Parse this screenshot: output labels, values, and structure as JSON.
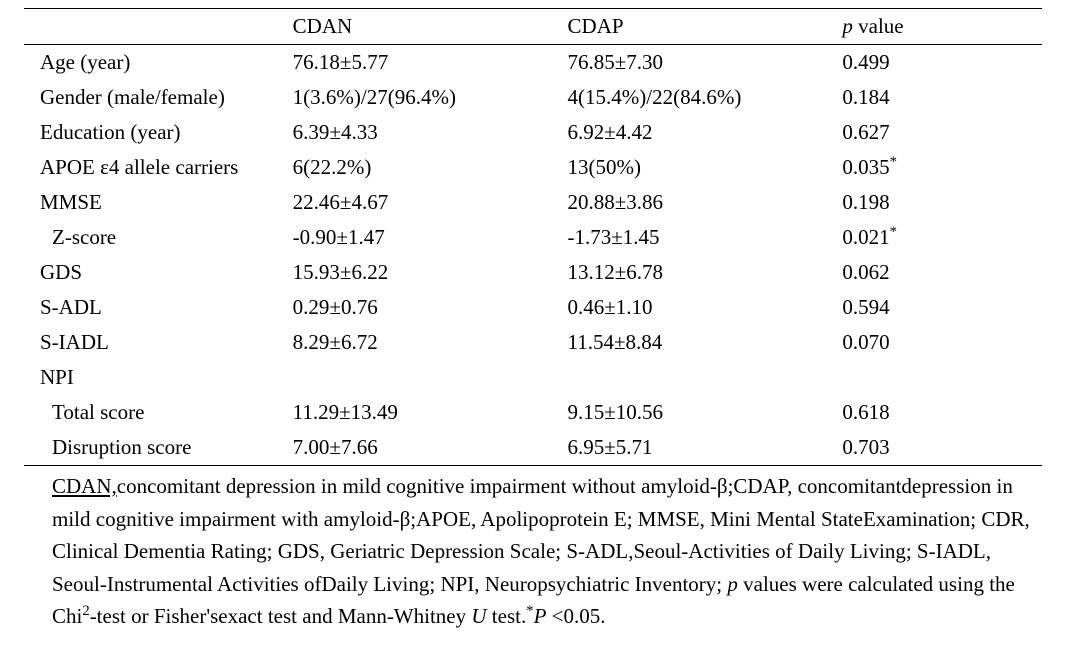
{
  "table": {
    "headers": {
      "col1": "",
      "col2": "CDAN",
      "col3": "CDAP",
      "col4_prefix": "p",
      "col4_suffix": " value"
    },
    "rows": [
      {
        "label": "Age (year)",
        "cdan": "76.18±5.77",
        "cdap": "76.85±7.30",
        "pval": "0.499",
        "indent": false,
        "star": false
      },
      {
        "label": "Gender (male/female)",
        "cdan": "1(3.6%)/27(96.4%)",
        "cdap": "4(15.4%)/22(84.6%)",
        "pval": "0.184",
        "indent": false,
        "star": false
      },
      {
        "label": "Education (year)",
        "cdan": "6.39±4.33",
        "cdap": "6.92±4.42",
        "pval": "0.627",
        "indent": false,
        "star": false
      },
      {
        "label": "APOE ε4 allele carriers",
        "cdan": "6(22.2%)",
        "cdap": "13(50%)",
        "pval": "0.035",
        "indent": false,
        "star": true
      },
      {
        "label": "MMSE",
        "cdan": "22.46±4.67",
        "cdap": "20.88±3.86",
        "pval": "0.198",
        "indent": false,
        "star": false
      },
      {
        "label_prefix": "Z",
        "label_suffix": "-score",
        "cdan": "-0.90±1.47",
        "cdap": "-1.73±1.45",
        "pval": "0.021",
        "indent": true,
        "star": true,
        "italic_prefix": true
      },
      {
        "label": "GDS",
        "cdan": "15.93±6.22",
        "cdap": "13.12±6.78",
        "pval": "0.062",
        "indent": false,
        "star": false
      },
      {
        "label": "S-ADL",
        "cdan": "0.29±0.76",
        "cdap": "0.46±1.10",
        "pval": "0.594",
        "indent": false,
        "star": false
      },
      {
        "label": "S-IADL",
        "cdan": "8.29±6.72",
        "cdap": "11.54±8.84",
        "pval": "0.070",
        "indent": false,
        "star": false
      },
      {
        "label": "NPI",
        "cdan": "",
        "cdap": "",
        "pval": "",
        "indent": false,
        "star": false
      },
      {
        "label": "Total score",
        "cdan": "11.29±13.49",
        "cdap": "9.15±10.56",
        "pval": "0.618",
        "indent": true,
        "star": false
      },
      {
        "label": "Disruption score",
        "cdan": "7.00±7.66",
        "cdap": "6.95±5.71",
        "pval": "0.703",
        "indent": true,
        "star": false
      }
    ]
  },
  "footnote": {
    "underlined": "CDAN,",
    "part1": "concomitant depression in mild cognitive impairment without amyloid-β;CDAP, concomitantdepression in mild cognitive impairment with amyloid-β;APOE, Apolipoprotein E; MMSE, Mini Mental StateExamination; CDR, Clinical Dementia Rating; GDS, Geriatric Depression Scale; S-ADL,Seoul-Activities of Daily Living; S-IADL, Seoul-Instrumental Activities ofDaily Living; NPI, Neuropsychiatric Inventory; ",
    "p_italic": "p",
    "part2": " values were calculated using the Chi",
    "sup_chi": "2",
    "part3": "-test or Fisher'sexact test and Mann-Whitney ",
    "u_italic": "U",
    "part4": " test.",
    "sup_star": "*",
    "p2_italic": "P",
    "part5": " <0.05."
  }
}
